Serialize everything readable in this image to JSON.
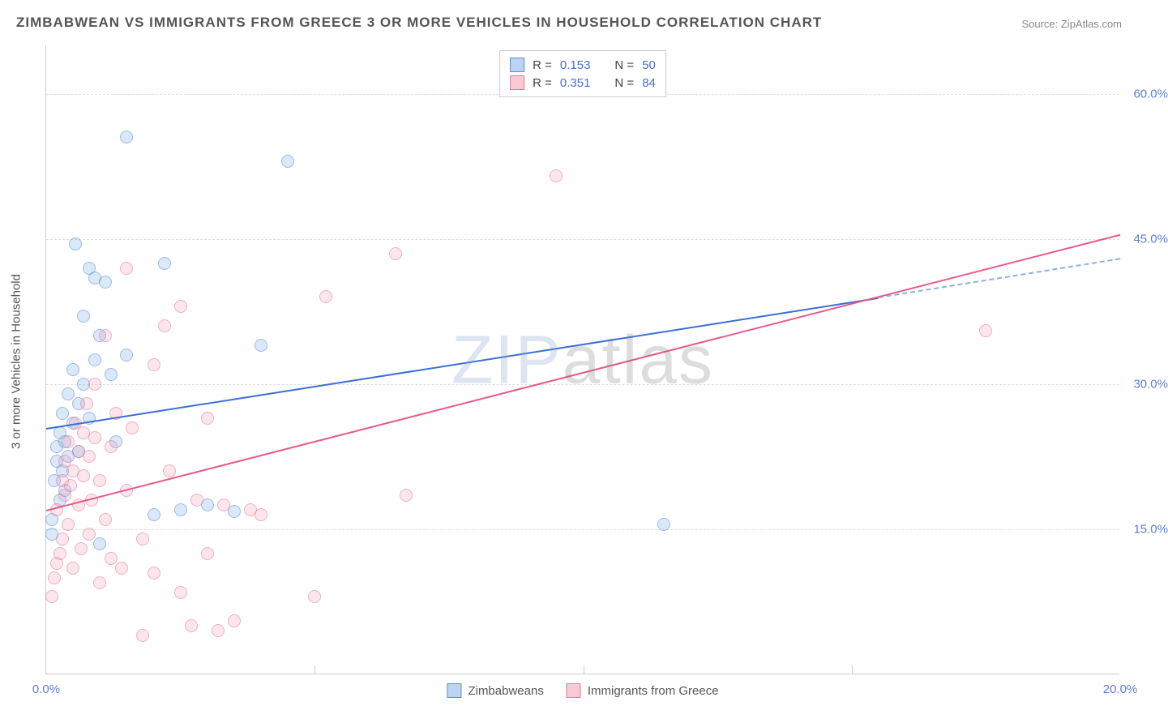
{
  "title": "ZIMBABWEAN VS IMMIGRANTS FROM GREECE 3 OR MORE VEHICLES IN HOUSEHOLD CORRELATION CHART",
  "source": "Source: ZipAtlas.com",
  "ylabel": "3 or more Vehicles in Household",
  "watermark_a": "ZIP",
  "watermark_b": "atlas",
  "chart": {
    "type": "scatter",
    "xlim": [
      0,
      20
    ],
    "ylim": [
      0,
      65
    ],
    "x_ticks": [
      0,
      20
    ],
    "x_tick_labels": [
      "0.0%",
      "20.0%"
    ],
    "x_minor_ticks": [
      5,
      10,
      15
    ],
    "y_ticks": [
      15,
      30,
      45,
      60
    ],
    "y_tick_labels": [
      "15.0%",
      "30.0%",
      "45.0%",
      "60.0%"
    ],
    "background_color": "#ffffff",
    "grid_color": "#dddddd",
    "axis_color": "#cccccc",
    "tick_label_color": "#5b7fd6",
    "title_color": "#555555",
    "title_fontsize": 17,
    "label_fontsize": 15,
    "marker_size": 16,
    "series": [
      {
        "name": "Zimbabweans",
        "color_fill": "rgba(120,170,230,0.45)",
        "color_stroke": "#5b8fd6",
        "R": 0.153,
        "N": 50,
        "trend": {
          "x0": 0,
          "y0": 25.5,
          "x1": 15.5,
          "y1": 39.0,
          "x_dash_end": 20,
          "y_dash_end": 43.0,
          "color": "#3b6fd6"
        },
        "points": [
          [
            0.1,
            14.5
          ],
          [
            0.1,
            16.0
          ],
          [
            0.15,
            20.0
          ],
          [
            0.2,
            22.0
          ],
          [
            0.2,
            23.5
          ],
          [
            0.25,
            18.0
          ],
          [
            0.25,
            25.0
          ],
          [
            0.3,
            21.0
          ],
          [
            0.3,
            27.0
          ],
          [
            0.35,
            19.0
          ],
          [
            0.35,
            24.0
          ],
          [
            0.4,
            22.5
          ],
          [
            0.4,
            29.0
          ],
          [
            0.5,
            26.0
          ],
          [
            0.5,
            31.5
          ],
          [
            0.55,
            44.5
          ],
          [
            0.6,
            23.0
          ],
          [
            0.6,
            28.0
          ],
          [
            0.7,
            37.0
          ],
          [
            0.7,
            30.0
          ],
          [
            0.8,
            42.0
          ],
          [
            0.8,
            26.5
          ],
          [
            0.9,
            41.0
          ],
          [
            0.9,
            32.5
          ],
          [
            1.0,
            13.5
          ],
          [
            1.0,
            35.0
          ],
          [
            1.1,
            40.5
          ],
          [
            1.2,
            31.0
          ],
          [
            1.3,
            24.0
          ],
          [
            1.5,
            55.5
          ],
          [
            1.5,
            33.0
          ],
          [
            2.0,
            16.5
          ],
          [
            2.2,
            42.5
          ],
          [
            2.5,
            17.0
          ],
          [
            3.0,
            17.5
          ],
          [
            3.5,
            16.8
          ],
          [
            4.0,
            34.0
          ],
          [
            4.5,
            53.0
          ],
          [
            11.5,
            15.5
          ]
        ]
      },
      {
        "name": "Immigrants from Greece",
        "color_fill": "rgba(240,150,170,0.4)",
        "color_stroke": "#e67a9a",
        "R": 0.351,
        "N": 84,
        "trend": {
          "x0": 0,
          "y0": 17.0,
          "x1": 20,
          "y1": 45.5,
          "color": "#e85a8a"
        },
        "points": [
          [
            0.1,
            8.0
          ],
          [
            0.15,
            10.0
          ],
          [
            0.2,
            11.5
          ],
          [
            0.2,
            17.0
          ],
          [
            0.25,
            12.5
          ],
          [
            0.3,
            20.0
          ],
          [
            0.3,
            14.0
          ],
          [
            0.35,
            22.0
          ],
          [
            0.35,
            18.5
          ],
          [
            0.4,
            15.5
          ],
          [
            0.4,
            24.0
          ],
          [
            0.45,
            19.5
          ],
          [
            0.5,
            11.0
          ],
          [
            0.5,
            21.0
          ],
          [
            0.55,
            26.0
          ],
          [
            0.6,
            17.5
          ],
          [
            0.6,
            23.0
          ],
          [
            0.65,
            13.0
          ],
          [
            0.7,
            25.0
          ],
          [
            0.7,
            20.5
          ],
          [
            0.75,
            28.0
          ],
          [
            0.8,
            14.5
          ],
          [
            0.8,
            22.5
          ],
          [
            0.85,
            18.0
          ],
          [
            0.9,
            24.5
          ],
          [
            0.9,
            30.0
          ],
          [
            1.0,
            9.5
          ],
          [
            1.0,
            20.0
          ],
          [
            1.1,
            35.0
          ],
          [
            1.1,
            16.0
          ],
          [
            1.2,
            12.0
          ],
          [
            1.2,
            23.5
          ],
          [
            1.3,
            27.0
          ],
          [
            1.4,
            11.0
          ],
          [
            1.5,
            42.0
          ],
          [
            1.5,
            19.0
          ],
          [
            1.6,
            25.5
          ],
          [
            1.8,
            4.0
          ],
          [
            1.8,
            14.0
          ],
          [
            2.0,
            32.0
          ],
          [
            2.0,
            10.5
          ],
          [
            2.2,
            36.0
          ],
          [
            2.3,
            21.0
          ],
          [
            2.5,
            8.5
          ],
          [
            2.5,
            38.0
          ],
          [
            2.7,
            5.0
          ],
          [
            2.8,
            18.0
          ],
          [
            3.0,
            26.5
          ],
          [
            3.0,
            12.5
          ],
          [
            3.2,
            4.5
          ],
          [
            3.3,
            17.5
          ],
          [
            3.5,
            5.5
          ],
          [
            3.8,
            17.0
          ],
          [
            4.0,
            16.5
          ],
          [
            5.0,
            8.0
          ],
          [
            5.2,
            39.0
          ],
          [
            6.5,
            43.5
          ],
          [
            6.7,
            18.5
          ],
          [
            9.5,
            51.5
          ],
          [
            17.5,
            35.5
          ]
        ]
      }
    ]
  },
  "legend_top": {
    "R_label": "R =",
    "N_label": "N ="
  },
  "legend_bottom": {
    "items": [
      "Zimbabweans",
      "Immigrants from Greece"
    ]
  }
}
